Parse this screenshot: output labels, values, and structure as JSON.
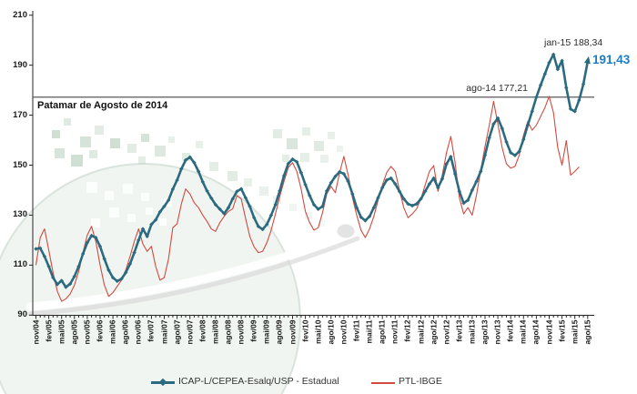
{
  "annotations": {
    "patamar_label": "Patamar de Agosto de 2014",
    "ago14_label": "ago-14 177,21",
    "jan15_label": "jan-15 188,34",
    "last_value_label": "191,43",
    "last_value_color": "#1d7cc4"
  },
  "legend": {
    "items": [
      {
        "label": "ICAP-L/CEPEA-Esalq/USP - Estadual",
        "color": "#2b6a7f"
      },
      {
        "label": "PTL-IBGE",
        "color": "#d24a40"
      }
    ]
  },
  "chart_data": {
    "type": "line",
    "title": "",
    "x_start": "nov/04",
    "x_end": "ago/15",
    "x_interval": "monthly",
    "x_tick_labels": [
      "nov/04",
      "fev/05",
      "mai/05",
      "ago/05",
      "nov/05",
      "fev/06",
      "mai/06",
      "ago/06",
      "nov/06",
      "fev/07",
      "mai/07",
      "ago/07",
      "nov/07",
      "fev/08",
      "mai/08",
      "ago/08",
      "nov/08",
      "fev/09",
      "mai/09",
      "ago/09",
      "nov/09",
      "fev/10",
      "mai/10",
      "ago/10",
      "nov/10",
      "fev/11",
      "mai/11",
      "ago/11",
      "nov/11",
      "fev/12",
      "mai/12",
      "ago/12",
      "nov/12",
      "fev/13",
      "mai/13",
      "ago/13",
      "nov/13",
      "fev/14",
      "mai/14",
      "ago/14",
      "nov/14",
      "fev/15",
      "mai/15",
      "ago/15"
    ],
    "y_ticks": [
      210,
      190,
      170,
      150,
      130,
      110,
      90
    ],
    "ylim": [
      90,
      210
    ],
    "grid": false,
    "legend_position": "bottom",
    "reference_line": {
      "value": 177.21,
      "label": "Patamar de Agosto de 2014",
      "color": "#58595b"
    },
    "callouts": [
      {
        "label": "ago-14 177,21",
        "month": "ago/14",
        "value": 177.21
      },
      {
        "label": "jan-15 188,34",
        "month": "jan/15",
        "value": 188.34
      },
      {
        "label": "191,43",
        "month": "ago/15",
        "value": 191.43
      }
    ],
    "series": [
      {
        "name": "ICAP-L/CEPEA-Esalq/USP - Estadual",
        "color": "#2b6a7f",
        "line_width": 2.6,
        "marker": "diamond",
        "values": [
          116.5,
          116.8,
          113.5,
          109.5,
          105.0,
          102.3,
          103.8,
          101.2,
          102.5,
          105.5,
          109.5,
          114.5,
          119.0,
          121.8,
          121.0,
          117.5,
          112.5,
          108.0,
          105.0,
          103.6,
          104.5,
          107.0,
          110.5,
          115.0,
          120.0,
          124.5,
          121.5,
          126.3,
          128.1,
          131.3,
          133.5,
          136.0,
          140.4,
          144.0,
          148.5,
          152.0,
          153.2,
          151.0,
          147.5,
          143.3,
          139.7,
          136.8,
          134.2,
          132.4,
          130.6,
          133.0,
          136.5,
          139.5,
          140.5,
          137.0,
          133.5,
          129.0,
          125.5,
          124.3,
          126.3,
          130.0,
          134.2,
          139.7,
          145.8,
          150.6,
          152.4,
          151.3,
          147.0,
          142.2,
          137.8,
          134.2,
          132.4,
          133.5,
          139.7,
          143.0,
          145.5,
          147.3,
          146.5,
          143.5,
          138.5,
          133.0,
          129.2,
          127.8,
          129.5,
          133.0,
          137.0,
          141.0,
          144.0,
          144.8,
          142.5,
          139.5,
          136.5,
          134.5,
          133.8,
          134.5,
          136.5,
          139.5,
          142.5,
          144.8,
          141.0,
          144.5,
          150.5,
          153.4,
          146.5,
          139.5,
          134.8,
          136.0,
          140.0,
          143.5,
          147.5,
          154.0,
          161.0,
          166.5,
          168.8,
          164.7,
          159.3,
          155.0,
          153.9,
          155.5,
          160.3,
          166.0,
          171.5,
          177.21,
          182.0,
          186.5,
          191.0,
          194.3,
          188.34,
          191.8,
          181.0,
          172.5,
          171.5,
          176.0,
          182.5,
          191.43
        ]
      },
      {
        "name": "PTL-IBGE",
        "color": "#d24a40",
        "line_width": 1.1,
        "marker": "none",
        "values": [
          110.0,
          121.0,
          124.5,
          116.0,
          107.0,
          99.5,
          95.5,
          96.5,
          98.5,
          102.0,
          107.5,
          115.0,
          122.0,
          125.5,
          119.5,
          110.0,
          102.0,
          97.5,
          99.0,
          101.5,
          104.0,
          108.0,
          113.5,
          119.5,
          124.5,
          118.5,
          115.5,
          117.5,
          109.5,
          104.0,
          105.0,
          112.5,
          125.0,
          126.5,
          134.5,
          140.5,
          138.5,
          135.0,
          133.0,
          130.0,
          127.5,
          124.5,
          123.5,
          127.0,
          129.5,
          131.5,
          132.5,
          137.8,
          136.5,
          128.8,
          121.5,
          117.3,
          115.0,
          115.5,
          119.0,
          124.0,
          130.5,
          137.5,
          143.5,
          149.0,
          151.0,
          147.5,
          140.5,
          131.5,
          127.0,
          124.0,
          125.0,
          131.0,
          138.5,
          141.5,
          139.0,
          147.0,
          153.5,
          146.0,
          137.0,
          130.0,
          124.0,
          121.0,
          124.5,
          129.5,
          136.0,
          142.0,
          147.0,
          149.5,
          147.5,
          140.0,
          133.0,
          129.0,
          130.5,
          132.5,
          136.5,
          142.0,
          147.5,
          149.8,
          139.5,
          146.0,
          155.0,
          161.5,
          151.0,
          137.0,
          130.5,
          133.0,
          130.0,
          138.0,
          148.0,
          157.5,
          166.0,
          175.5,
          166.5,
          157.0,
          150.5,
          148.8,
          149.5,
          154.0,
          162.0,
          167.5,
          164.0,
          166.0,
          169.5,
          173.0,
          177.5,
          171.0,
          157.0,
          150.0,
          159.8,
          146.0,
          147.5,
          149.3,
          null,
          null
        ]
      }
    ]
  }
}
